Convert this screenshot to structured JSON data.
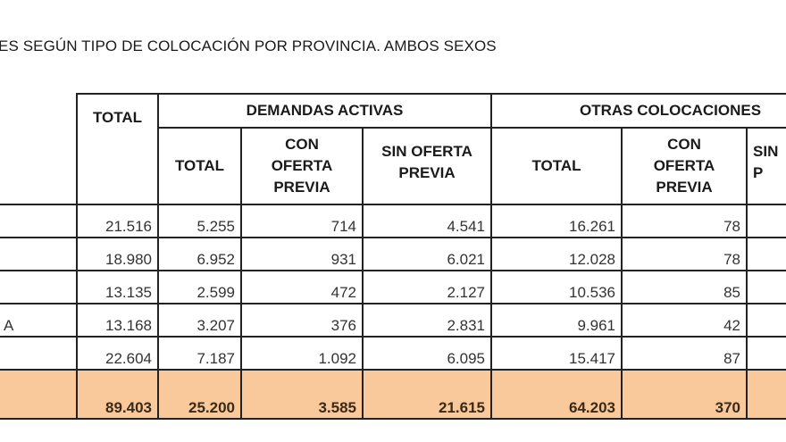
{
  "title": "ES SEGÚN TIPO DE COLOCACIÓN POR PROVINCIA. AMBOS SEXOS",
  "headers": {
    "total": "TOTAL",
    "group1": "DEMANDAS ACTIVAS",
    "group2": "OTRAS COLOCACIONES",
    "sub_total": "TOTAL",
    "con_oferta": "CON OFERTA PREVIA",
    "sin_oferta": "SIN OFERTA PREVIA",
    "sin_partial": "SIN P"
  },
  "rows": [
    {
      "name": "",
      "total": "21.516",
      "da_total": "5.255",
      "da_con": "714",
      "da_sin": "4.541",
      "oc_total": "16.261",
      "oc_con": "78"
    },
    {
      "name": "",
      "total": "18.980",
      "da_total": "6.952",
      "da_con": "931",
      "da_sin": "6.021",
      "oc_total": "12.028",
      "oc_con": "78"
    },
    {
      "name": "",
      "total": "13.135",
      "da_total": "2.599",
      "da_con": "472",
      "da_sin": "2.127",
      "oc_total": "10.536",
      "oc_con": "85"
    },
    {
      "name": "A",
      "total": "13.168",
      "da_total": "3.207",
      "da_con": "376",
      "da_sin": "2.831",
      "oc_total": "9.961",
      "oc_con": "42"
    },
    {
      "name": "",
      "total": "22.604",
      "da_total": "7.187",
      "da_con": "1.092",
      "da_sin": "6.095",
      "oc_total": "15.417",
      "oc_con": "87"
    }
  ],
  "totals": {
    "total": "89.403",
    "da_total": "25.200",
    "da_con": "3.585",
    "da_sin": "21.615",
    "oc_total": "64.203",
    "oc_con": "370"
  },
  "colors": {
    "total_row": "#F9C89B"
  }
}
